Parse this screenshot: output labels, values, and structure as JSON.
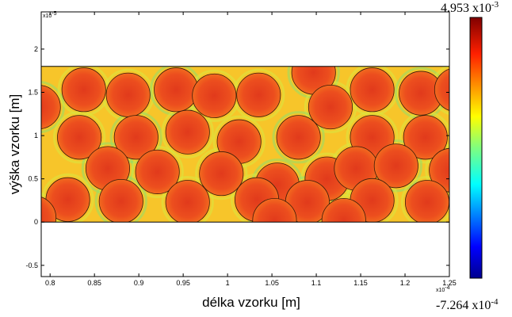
{
  "chart_data": {
    "type": "heatmap",
    "title": "",
    "xlabel": "délka vzorku [m]",
    "ylabel": "výška vzorku [m]",
    "x_exponent_base": "x10",
    "x_exponent_power": "-4",
    "y_exponent_base": "x10",
    "y_exponent_power": "-5",
    "xlim": [
      0.79,
      1.25
    ],
    "ylim": [
      -0.63,
      2.43
    ],
    "x_ticks": [
      "0.8",
      "0.85",
      "0.9",
      "0.95",
      "1",
      "1.05",
      "1.1",
      "1.15",
      "1.2",
      "1.25"
    ],
    "x_tick_values": [
      0.8,
      0.85,
      0.9,
      0.95,
      1.0,
      1.05,
      1.1,
      1.15,
      1.2,
      1.25
    ],
    "y_ticks": [
      "-0.5",
      "0",
      "0.5",
      "1",
      "1.5",
      "2"
    ],
    "y_tick_values": [
      -0.5,
      0,
      0.5,
      1,
      1.5,
      2
    ],
    "sample_region": {
      "x": [
        0.79,
        1.25
      ],
      "y": [
        0,
        1.8
      ]
    },
    "colorbar": {
      "max_mantissa": "4.953",
      "max_base": "x10",
      "max_power": "-3",
      "min_mantissa": "-7.264",
      "min_base": "x10",
      "min_power": "-4",
      "colormap": "jet",
      "placement": "right"
    },
    "matrix_color": "#f7c52a",
    "particle_color": "#e8411f",
    "particle_radius": 0.247,
    "particles": [
      [
        0.787,
        1.33
      ],
      [
        0.838,
        1.53
      ],
      [
        0.888,
        1.47
      ],
      [
        0.942,
        1.53
      ],
      [
        0.985,
        1.46
      ],
      [
        1.035,
        1.47
      ],
      [
        1.097,
        1.73
      ],
      [
        1.116,
        1.33
      ],
      [
        1.163,
        1.53
      ],
      [
        1.218,
        1.49
      ],
      [
        1.258,
        1.53
      ],
      [
        0.833,
        0.98
      ],
      [
        0.897,
        0.98
      ],
      [
        0.955,
        1.04
      ],
      [
        1.013,
        0.93
      ],
      [
        1.08,
        0.98
      ],
      [
        1.163,
        0.98
      ],
      [
        1.223,
        0.98
      ],
      [
        0.865,
        0.62
      ],
      [
        0.921,
        0.58
      ],
      [
        0.993,
        0.56
      ],
      [
        1.056,
        0.43
      ],
      [
        1.112,
        0.5
      ],
      [
        1.145,
        0.62
      ],
      [
        1.19,
        0.65
      ],
      [
        1.252,
        0.6
      ],
      [
        0.82,
        0.26
      ],
      [
        0.88,
        0.24
      ],
      [
        0.955,
        0.23
      ],
      [
        1.033,
        0.26
      ],
      [
        1.09,
        0.23
      ],
      [
        1.163,
        0.25
      ],
      [
        1.225,
        0.23
      ],
      [
        1.053,
        0.02
      ],
      [
        1.131,
        0.02
      ],
      [
        0.782,
        0.05
      ]
    ]
  }
}
